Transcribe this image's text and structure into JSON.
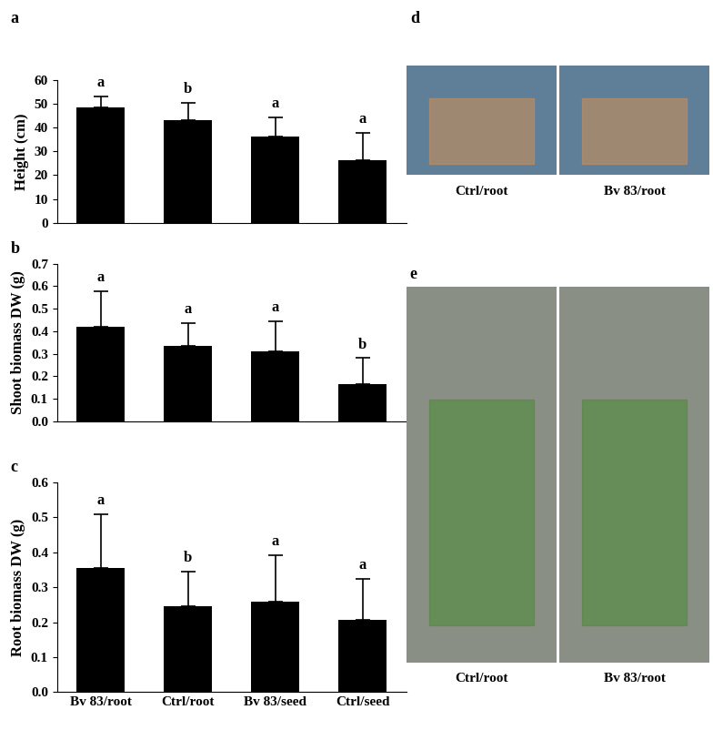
{
  "chart_data": [
    {
      "type": "bar",
      "title": "a",
      "categories": [
        "Bv 83/root",
        "Ctrl/root",
        "Bv 83/seed",
        "Ctrl/seed"
      ],
      "values": [
        48.7,
        43.3,
        36.3,
        26.3
      ],
      "errors": [
        4.6,
        7.2,
        8.2,
        11.5
      ],
      "significance": [
        "a",
        "b",
        "a",
        "a"
      ],
      "ylabel": "Height (cm)",
      "color": "#000000",
      "ylim": [
        0,
        60
      ],
      "yticks": [
        0,
        10,
        20,
        30,
        40,
        50,
        60
      ],
      "tick_labels": "y"
    },
    {
      "type": "bar",
      "title": "b",
      "categories": [
        "Bv 83/root",
        "Ctrl/root",
        "Bv 83/seed",
        "Ctrl/seed"
      ],
      "values": [
        0.42,
        0.335,
        0.31,
        0.165
      ],
      "errors": [
        0.158,
        0.102,
        0.135,
        0.115
      ],
      "significance": [
        "a",
        "a",
        "a",
        "b"
      ],
      "ylabel": "Shoot biomass DW (g)",
      "color": "#000000",
      "ylim": [
        0.0,
        0.7
      ],
      "yticks": [
        0.0,
        0.1,
        0.2,
        0.3,
        0.4,
        0.5,
        0.6,
        0.7
      ],
      "tick_labels": "y"
    },
    {
      "type": "bar",
      "title": "c",
      "categories": [
        "Bv 83/root",
        "Ctrl/root",
        "Bv 83/seed",
        "Ctrl/seed"
      ],
      "values": [
        0.355,
        0.245,
        0.258,
        0.208
      ],
      "errors": [
        0.155,
        0.1,
        0.135,
        0.115
      ],
      "significance": [
        "a",
        "b",
        "a",
        "a"
      ],
      "ylabel": "Root biomass DW (g)",
      "color": "#000000",
      "ylim": [
        0.0,
        0.6
      ],
      "yticks": [
        0.0,
        0.1,
        0.2,
        0.3,
        0.4,
        0.5,
        0.6
      ]
    }
  ],
  "images": [
    {
      "panel": "d",
      "labels": [
        "Ctrl/root",
        "Bv 83/root"
      ]
    },
    {
      "panel": "e",
      "labels": [
        "Ctrl/root",
        "Bv 83/root"
      ]
    }
  ]
}
